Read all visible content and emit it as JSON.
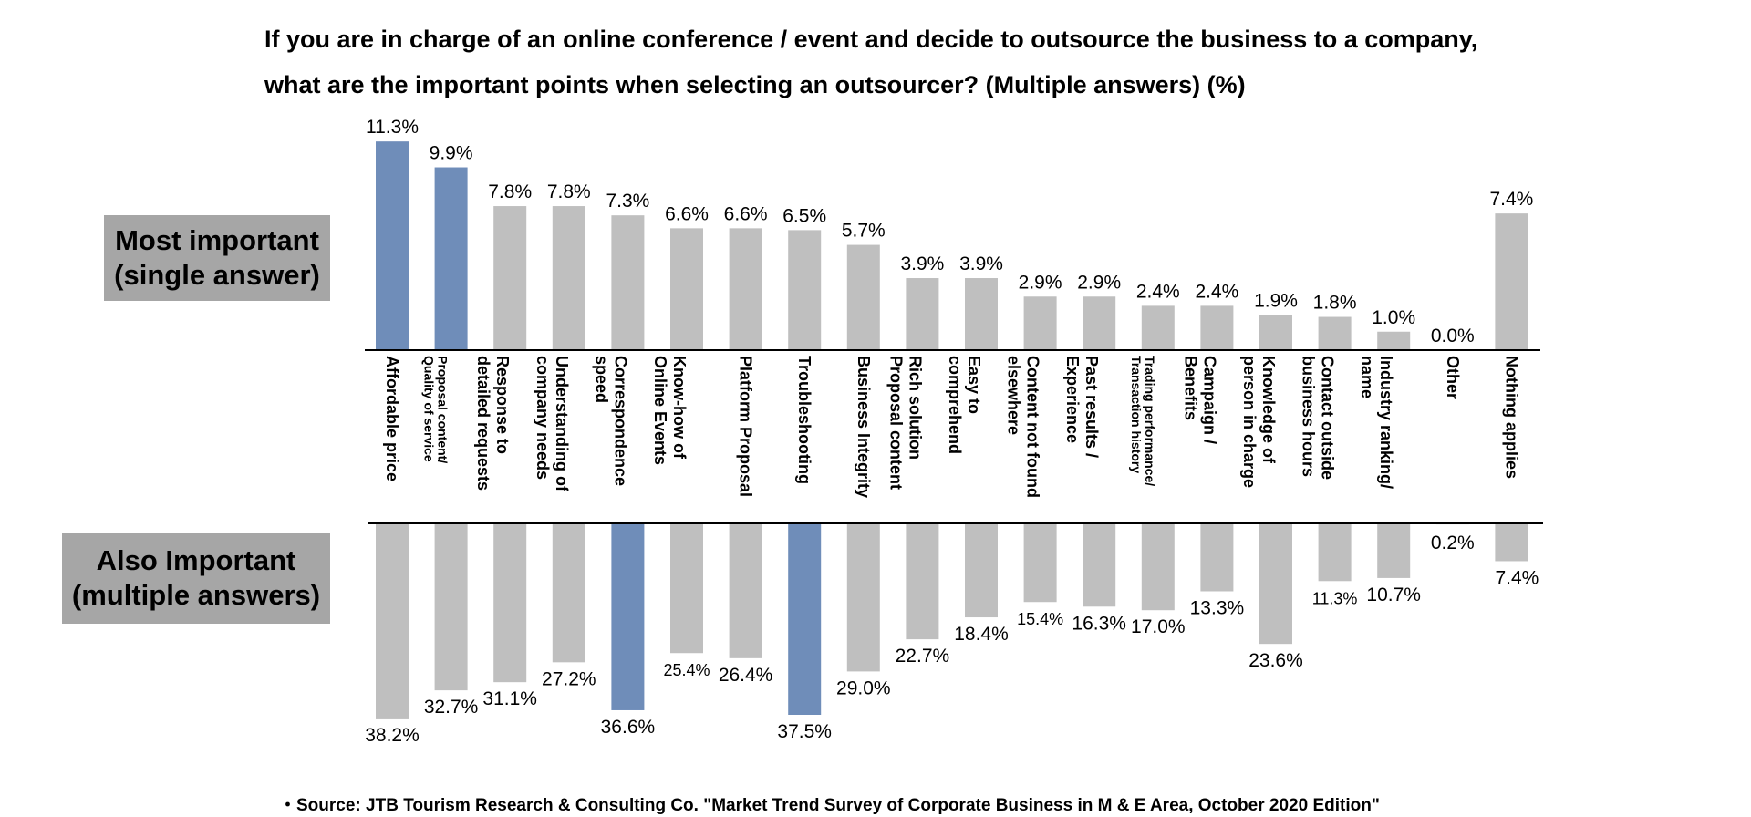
{
  "title_line1": "If you are in charge of an online conference / event and decide to outsource the business to a company,",
  "title_line2": "what are the important points when selecting an outsourcer? (Multiple answers) (%)",
  "top_box": {
    "line1": "Most important",
    "line2": "(single answer)"
  },
  "bottom_box": {
    "line1": "Also Important",
    "line2": "(multiple answers)"
  },
  "source": "・Source: JTB Tourism Research & Consulting Co. \"Market Trend Survey of Corporate Business in M & E Area, October 2020 Edition\"",
  "colors": {
    "highlight": "#6f8db9",
    "normal": "#bfbfbf",
    "box": "#a6a6a6",
    "axis": "#000000"
  },
  "chart_data": [
    {
      "type": "bar",
      "title": "Most important (single answer)",
      "categories": [
        [
          "Affordable price"
        ],
        [
          "Proposal content/",
          "Quality of service"
        ],
        [
          "Response to",
          "detailed requests"
        ],
        [
          "Understanding of",
          "company needs"
        ],
        [
          "Correspondence",
          "speed"
        ],
        [
          "Know-how of",
          "Online Events"
        ],
        [
          "Platform Proposal"
        ],
        [
          "Troubleshooting"
        ],
        [
          "Business Integrity"
        ],
        [
          "Rich solution",
          "Proposal content"
        ],
        [
          "Easy to",
          "comprehend"
        ],
        [
          "Content not found",
          "elsewhere"
        ],
        [
          "Past results /",
          "Experience"
        ],
        [
          "Trading performance/",
          "Transaction history"
        ],
        [
          "Campaign /",
          "Benefits"
        ],
        [
          "Knowledge of",
          "person in charge"
        ],
        [
          "Contact outside",
          "business hours"
        ],
        [
          "Industry ranking/",
          "name"
        ],
        [
          "Other"
        ],
        [
          "Nothing applies"
        ]
      ],
      "values": [
        11.3,
        9.9,
        7.8,
        7.8,
        7.3,
        6.6,
        6.6,
        6.5,
        5.7,
        3.9,
        3.9,
        2.9,
        2.9,
        2.4,
        2.4,
        1.9,
        1.8,
        1.0,
        0.0,
        7.4
      ],
      "labels": [
        "11.3%",
        "9.9%",
        "7.8%",
        "7.8%",
        "7.3%",
        "6.6%",
        "6.6%",
        "6.5%",
        "5.7%",
        "3.9%",
        "3.9%",
        "2.9%",
        "2.9%",
        "2.4%",
        "2.4%",
        "1.9%",
        "1.8%",
        "1.0%",
        "0.0%",
        "7.4%"
      ],
      "highlight": [
        0,
        1
      ],
      "unit": "%"
    },
    {
      "type": "bar",
      "title": "Also Important (multiple answers)",
      "values": [
        38.2,
        32.7,
        31.1,
        27.2,
        36.6,
        25.4,
        26.4,
        37.5,
        29.0,
        22.7,
        18.4,
        15.4,
        16.3,
        17.0,
        13.3,
        23.6,
        11.3,
        10.7,
        0.2,
        7.4
      ],
      "labels": [
        "38.2%",
        "32.7%",
        "31.1%",
        "27.2%",
        "36.6%",
        "25.4%",
        "26.4%",
        "37.5%",
        "29.0%",
        "22.7%",
        "18.4%",
        "15.4%",
        "16.3%",
        "17.0%",
        "13.3%",
        "23.6%",
        "11.3%",
        "10.7%",
        "0.2%",
        "7.4%"
      ],
      "small_labels": [
        5,
        11,
        16
      ],
      "highlight": [
        4,
        7
      ],
      "direction": "downward",
      "unit": "%"
    }
  ]
}
